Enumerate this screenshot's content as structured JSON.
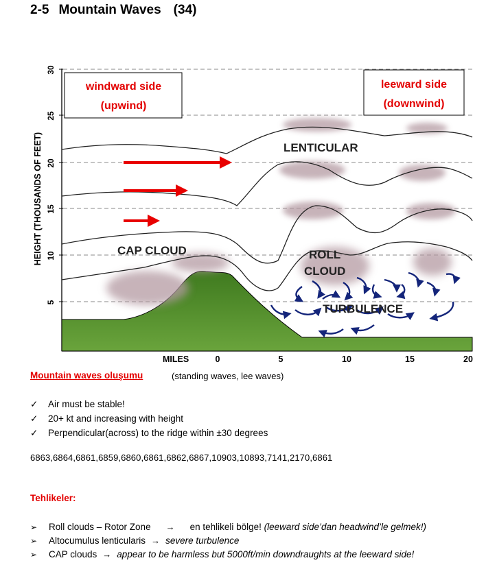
{
  "heading": {
    "number": "2-5",
    "title": "Mountain Waves",
    "page_ref": "(34)"
  },
  "diagram": {
    "y_axis_label": "HEIGHT (THOUSANDS OF FEET)",
    "y_ticks": [
      "30",
      "25",
      "20",
      "15",
      "10",
      "5"
    ],
    "x_axis_label": "MILES",
    "x_ticks": [
      "0",
      "5",
      "10",
      "15",
      "20"
    ],
    "windward_box": {
      "line1": "windward side",
      "line2": "(upwind)"
    },
    "leeward_box": {
      "line1": "leeward side",
      "line2": "(downwind)"
    },
    "labels": {
      "lenticular": "LENTICULAR",
      "cap_cloud": "CAP CLOUD",
      "roll_line1": "ROLL",
      "roll_line2": "CLOUD",
      "turbulence": "TURBULENCE"
    },
    "colors": {
      "label_red": "#e30000",
      "wind_arrow": "#e80000",
      "mountain": "#4f8a2a",
      "rotor_arrow": "#14257a"
    }
  },
  "section": {
    "title": "Mountain waves oluşumu",
    "subtitle": "(standing waves, lee waves)",
    "conditions": [
      "Air must be stable!",
      "20+ kt and increasing with height",
      "Perpendicular(across) to the ridge within ±30 degrees"
    ],
    "check_mark": "✓"
  },
  "question_numbers": "6863,6864,6861,6859,6860,6861,6862,6867,10903,10893,7141,2170,6861",
  "hazards": {
    "title": "Tehlikeler:",
    "bullet": "➢",
    "arrow": "→",
    "items": [
      {
        "left": "Roll clouds – Rotor Zone",
        "right": "en tehlikeli bölge!",
        "note": "(leeward side’dan headwind’le gelmek!)"
      },
      {
        "left": "Altocumulus lenticularis",
        "right": "severe turbulence"
      },
      {
        "left": "CAP clouds",
        "right": "appear to be harmless but 5000ft/min downdraughts at the leeward side!"
      }
    ]
  }
}
